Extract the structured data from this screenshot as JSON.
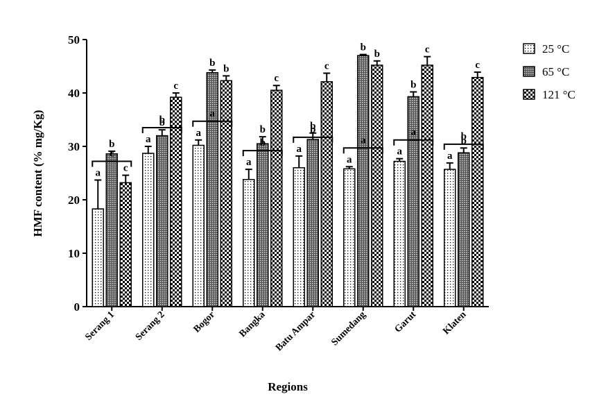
{
  "chart_data": {
    "type": "bar",
    "x_label": "Regions",
    "y_label": "HMF content (% mg/Kg)",
    "categories": [
      "Serang 1",
      "Serang 2",
      "Bogor",
      "Bangka",
      "Batu Ampar",
      "Sumedang",
      "Garut",
      "Klaten"
    ],
    "series": [
      {
        "name": "25 °C",
        "color": "#000000",
        "pattern": "dots",
        "values": [
          18.3,
          28.7,
          30.2,
          23.8,
          26.0,
          25.8,
          27.2,
          25.7
        ],
        "errors": [
          5.4,
          1.3,
          1.0,
          1.9,
          2.2,
          0.4,
          0.5,
          1.2
        ],
        "letters": [
          "a",
          "a",
          "a",
          "a",
          "a",
          "a",
          "a",
          "a"
        ]
      },
      {
        "name": "65 °C",
        "color": "#000000",
        "pattern": "grid",
        "values": [
          28.6,
          32.0,
          43.8,
          30.5,
          31.3,
          47.0,
          39.3,
          28.8
        ],
        "errors": [
          0.5,
          1.1,
          0.5,
          1.3,
          1.2,
          0.2,
          0.9,
          0.9
        ],
        "letters": [
          "b",
          "b",
          "b",
          "b",
          "b",
          "b",
          "b",
          "b"
        ]
      },
      {
        "name": "121 °C",
        "color": "#000000",
        "pattern": "checker",
        "values": [
          23.2,
          39.2,
          42.3,
          40.5,
          42.1,
          45.2,
          45.2,
          42.9
        ],
        "errors": [
          1.4,
          0.8,
          0.9,
          0.9,
          1.6,
          0.8,
          1.6,
          1.0
        ],
        "letters": [
          "c",
          "c",
          "b",
          "c",
          "c",
          "b",
          "c",
          "c"
        ]
      }
    ],
    "group_letters": [
      "c",
      "b",
      "a",
      "b",
      "b",
      "a",
      "a",
      "b"
    ],
    "ylim": [
      0,
      50
    ],
    "yticks": [
      0,
      10,
      20,
      30,
      40,
      50
    ],
    "legend": "right"
  }
}
